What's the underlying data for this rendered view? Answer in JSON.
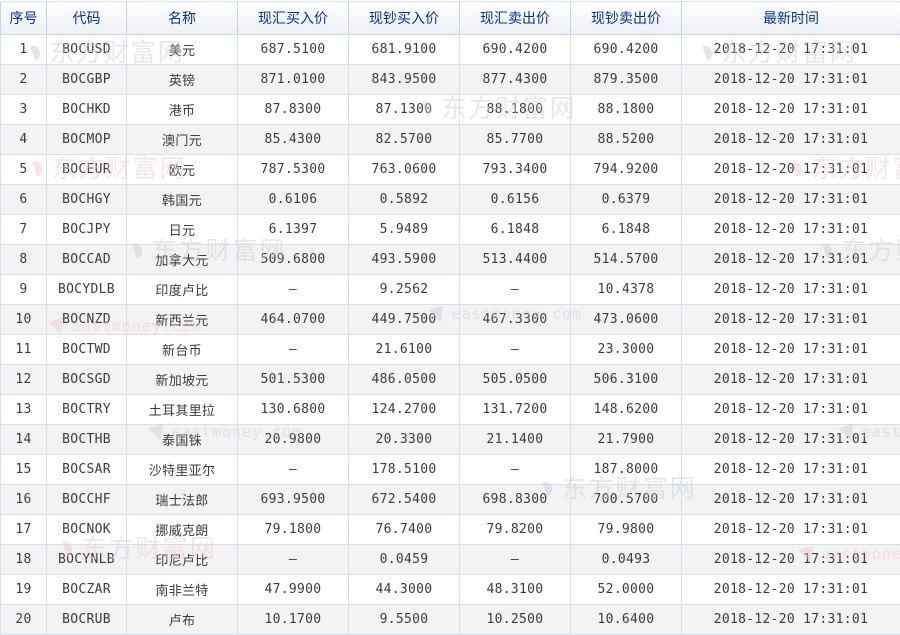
{
  "colors": {
    "header_text": "#003399",
    "border": "#bdd9ee",
    "row_divider": "#cfe3f2",
    "even_row_bg": "#f3f3f3",
    "data_text": "#3c3c3c",
    "watermark_gray": "#c8ccd4",
    "watermark_pink": "#ecc7c7"
  },
  "watermark": {
    "brand": "东方财富网",
    "site": "eastmoney.com"
  },
  "table": {
    "columns": [
      {
        "key": "index",
        "label": "序号"
      },
      {
        "key": "code",
        "label": "代码"
      },
      {
        "key": "name",
        "label": "名称"
      },
      {
        "key": "spot_buy",
        "label": "现汇买入价"
      },
      {
        "key": "cash_buy",
        "label": "现钞买入价"
      },
      {
        "key": "spot_sell",
        "label": "现汇卖出价"
      },
      {
        "key": "cash_sell",
        "label": "现钞卖出价"
      },
      {
        "key": "time",
        "label": "最新时间"
      }
    ],
    "rows": [
      {
        "index": "1",
        "code": "BOCUSD",
        "name": "美元",
        "spot_buy": "687.5100",
        "cash_buy": "681.9100",
        "spot_sell": "690.4200",
        "cash_sell": "690.4200",
        "time": "2018-12-20 17:31:01"
      },
      {
        "index": "2",
        "code": "BOCGBP",
        "name": "英镑",
        "spot_buy": "871.0100",
        "cash_buy": "843.9500",
        "spot_sell": "877.4300",
        "cash_sell": "879.3500",
        "time": "2018-12-20 17:31:01"
      },
      {
        "index": "3",
        "code": "BOCHKD",
        "name": "港币",
        "spot_buy": "87.8300",
        "cash_buy": "87.1300",
        "spot_sell": "88.1800",
        "cash_sell": "88.1800",
        "time": "2018-12-20 17:31:01"
      },
      {
        "index": "4",
        "code": "BOCMOP",
        "name": "澳门元",
        "spot_buy": "85.4300",
        "cash_buy": "82.5700",
        "spot_sell": "85.7700",
        "cash_sell": "88.5200",
        "time": "2018-12-20 17:31:01"
      },
      {
        "index": "5",
        "code": "BOCEUR",
        "name": "欧元",
        "spot_buy": "787.5300",
        "cash_buy": "763.0600",
        "spot_sell": "793.3400",
        "cash_sell": "794.9200",
        "time": "2018-12-20 17:31:01"
      },
      {
        "index": "6",
        "code": "BOCHGY",
        "name": "韩国元",
        "spot_buy": "0.6106",
        "cash_buy": "0.5892",
        "spot_sell": "0.6156",
        "cash_sell": "0.6379",
        "time": "2018-12-20 17:31:01"
      },
      {
        "index": "7",
        "code": "BOCJPY",
        "name": "日元",
        "spot_buy": "6.1397",
        "cash_buy": "5.9489",
        "spot_sell": "6.1848",
        "cash_sell": "6.1848",
        "time": "2018-12-20 17:31:01"
      },
      {
        "index": "8",
        "code": "BOCCAD",
        "name": "加拿大元",
        "spot_buy": "509.6800",
        "cash_buy": "493.5900",
        "spot_sell": "513.4400",
        "cash_sell": "514.5700",
        "time": "2018-12-20 17:31:01"
      },
      {
        "index": "9",
        "code": "BOCYDLB",
        "name": "印度卢比",
        "spot_buy": "–",
        "cash_buy": "9.2562",
        "spot_sell": "–",
        "cash_sell": "10.4378",
        "time": "2018-12-20 17:31:01"
      },
      {
        "index": "10",
        "code": "BOCNZD",
        "name": "新西兰元",
        "spot_buy": "464.0700",
        "cash_buy": "449.7500",
        "spot_sell": "467.3300",
        "cash_sell": "473.0600",
        "time": "2018-12-20 17:31:01"
      },
      {
        "index": "11",
        "code": "BOCTWD",
        "name": "新台币",
        "spot_buy": "–",
        "cash_buy": "21.6100",
        "spot_sell": "–",
        "cash_sell": "23.3000",
        "time": "2018-12-20 17:31:01"
      },
      {
        "index": "12",
        "code": "BOCSGD",
        "name": "新加坡元",
        "spot_buy": "501.5300",
        "cash_buy": "486.0500",
        "spot_sell": "505.0500",
        "cash_sell": "506.3100",
        "time": "2018-12-20 17:31:01"
      },
      {
        "index": "13",
        "code": "BOCTRY",
        "name": "土耳其里拉",
        "spot_buy": "130.6800",
        "cash_buy": "124.2700",
        "spot_sell": "131.7200",
        "cash_sell": "148.6200",
        "time": "2018-12-20 17:31:01"
      },
      {
        "index": "14",
        "code": "BOCTHB",
        "name": "泰国铢",
        "spot_buy": "20.9800",
        "cash_buy": "20.3300",
        "spot_sell": "21.1400",
        "cash_sell": "21.7900",
        "time": "2018-12-20 17:31:01"
      },
      {
        "index": "15",
        "code": "BOCSAR",
        "name": "沙特里亚尔",
        "spot_buy": "–",
        "cash_buy": "178.5100",
        "spot_sell": "–",
        "cash_sell": "187.8000",
        "time": "2018-12-20 17:31:01"
      },
      {
        "index": "16",
        "code": "BOCCHF",
        "name": "瑞士法郎",
        "spot_buy": "693.9500",
        "cash_buy": "672.5400",
        "spot_sell": "698.8300",
        "cash_sell": "700.5700",
        "time": "2018-12-20 17:31:01"
      },
      {
        "index": "17",
        "code": "BOCNOK",
        "name": "挪威克朗",
        "spot_buy": "79.1800",
        "cash_buy": "76.7400",
        "spot_sell": "79.8200",
        "cash_sell": "79.9800",
        "time": "2018-12-20 17:31:01"
      },
      {
        "index": "18",
        "code": "BOCYNLB",
        "name": "印尼卢比",
        "spot_buy": "–",
        "cash_buy": "0.0459",
        "spot_sell": "–",
        "cash_sell": "0.0493",
        "time": "2018-12-20 17:31:01"
      },
      {
        "index": "19",
        "code": "BOCZAR",
        "name": "南非兰特",
        "spot_buy": "47.9900",
        "cash_buy": "44.3000",
        "spot_sell": "48.3100",
        "cash_sell": "52.0000",
        "time": "2018-12-20 17:31:01"
      },
      {
        "index": "20",
        "code": "BOCRUB",
        "name": "卢布",
        "spot_buy": "10.1700",
        "cash_buy": "9.5500",
        "spot_sell": "10.2500",
        "cash_sell": "10.6400",
        "time": "2018-12-20 17:31:01"
      }
    ]
  }
}
